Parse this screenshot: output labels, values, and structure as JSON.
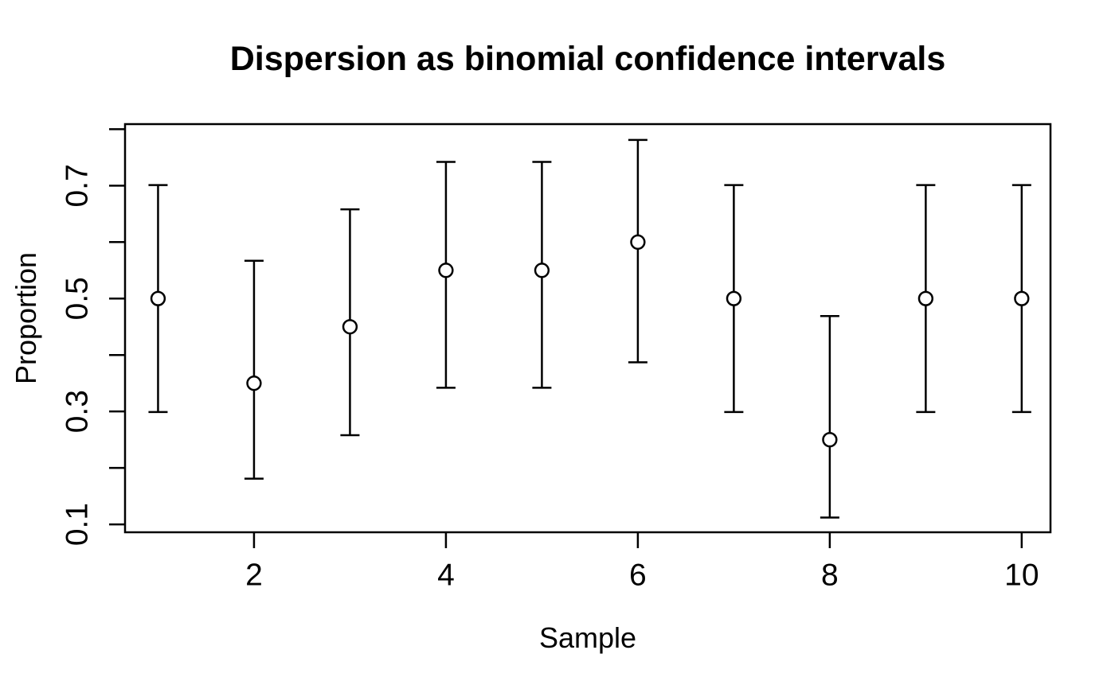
{
  "chart_data": {
    "type": "scatter",
    "subtype": "error-bar-plot",
    "title": "Dispersion as binomial confidence intervals",
    "xlabel": "Sample",
    "ylabel": "Proportion",
    "x": [
      1,
      2,
      3,
      4,
      5,
      6,
      7,
      8,
      9,
      10
    ],
    "series": [
      {
        "name": "proportion",
        "values": [
          0.5,
          0.35,
          0.45,
          0.55,
          0.55,
          0.6,
          0.5,
          0.25,
          0.5,
          0.5
        ],
        "ci_lower": [
          0.299,
          0.181,
          0.258,
          0.342,
          0.342,
          0.387,
          0.299,
          0.112,
          0.299,
          0.299
        ],
        "ci_upper": [
          0.701,
          0.567,
          0.658,
          0.742,
          0.742,
          0.781,
          0.701,
          0.469,
          0.701,
          0.701
        ]
      }
    ],
    "x_ticks": [
      2,
      4,
      6,
      8,
      10
    ],
    "x_tick_labels": [
      "2",
      "4",
      "6",
      "8",
      "10"
    ],
    "y_ticks": [
      0.1,
      0.2,
      0.3,
      0.4,
      0.5,
      0.6,
      0.7,
      0.8
    ],
    "y_labeled_ticks": [
      0.1,
      0.3,
      0.5,
      0.7
    ],
    "y_tick_labels": [
      "0.1",
      "0.3",
      "0.5",
      "0.7"
    ],
    "xlim": [
      0.656,
      10.3
    ],
    "ylim": [
      0.086,
      0.809
    ],
    "grid": false,
    "legend_position": "none",
    "style": {
      "foreground": "#000000",
      "background": "#ffffff",
      "marker_fill": "#ffffff",
      "marker_shape": "open-circle"
    }
  }
}
